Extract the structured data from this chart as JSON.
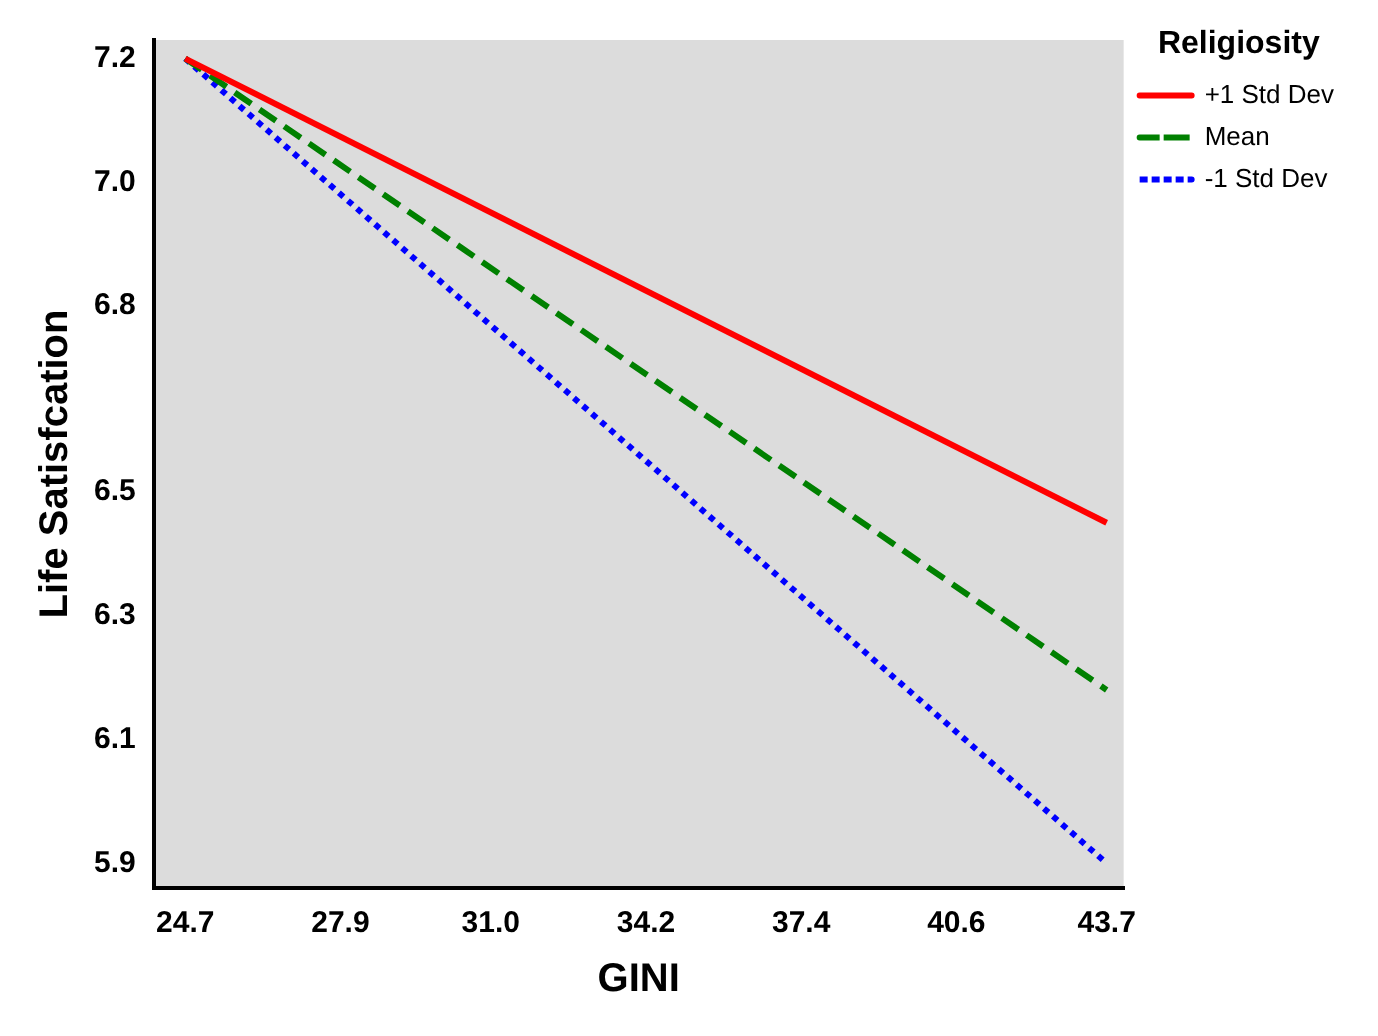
{
  "chart_data": {
    "type": "line",
    "xlabel": "GINI",
    "ylabel": "Life Satisfcation",
    "legend_title": "Religiosity",
    "legend": "top right",
    "grid": false,
    "marker": "none",
    "x": [
      24.7,
      43.7
    ],
    "xlim": [
      24.05,
      44.05
    ],
    "ylim": [
      5.86,
      7.23
    ],
    "xticks": [
      24.7,
      27.9,
      {
        "value": 31,
        "label": "31.0"
      },
      34.2,
      37.4,
      40.6,
      43.7
    ],
    "yticks": [
      5.9,
      6.1,
      6.3,
      6.5,
      6.8,
      {
        "value": 7,
        "label": "7.0"
      },
      7.2
    ],
    "series": [
      {
        "name": "+1 Std Dev",
        "color": "#ff0000",
        "values": [
          7.2,
          6.45
        ],
        "line_style": "solid"
      },
      {
        "name": "Mean",
        "color": "#008000",
        "values": [
          7.2,
          6.18
        ],
        "line_style": "dashed"
      },
      {
        "name": "-1 Std Dev",
        "color": "#0000ff",
        "values": [
          7.2,
          5.9
        ],
        "line_style": "dotted"
      }
    ]
  }
}
